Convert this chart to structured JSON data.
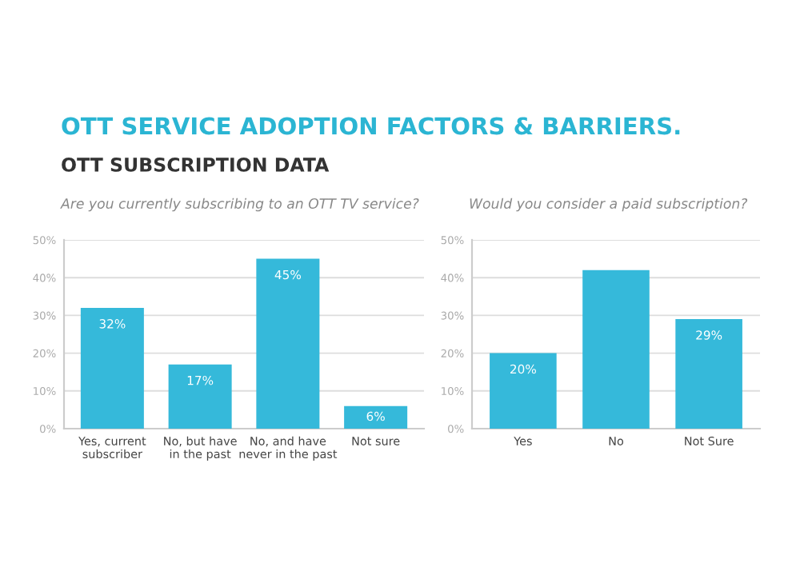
{
  "chart_data": [
    {
      "type": "bar",
      "title": "OTT SERVICE ADOPTION FACTORS & BARRIERS.",
      "subtitle": "OTT SUBSCRIPTION DATA",
      "annotations": [
        "Are you currently subscribing to an OTT TV service?"
      ],
      "categories": [
        "Yes, current\nsubscriber",
        "No, but have\nin the past",
        "No, and have\nnever in the past",
        "Not sure"
      ],
      "values": [
        32,
        17,
        45,
        6
      ],
      "value_labels": [
        "32%",
        "17%",
        "45%",
        "6%"
      ],
      "color": "#35b9da",
      "ylim": [
        0,
        50
      ],
      "yticks": [
        {
          "value": 0,
          "label": "0%"
        },
        {
          "value": 10,
          "label": "10%"
        },
        {
          "value": 20,
          "label": "20%"
        },
        {
          "value": 30,
          "label": "30%"
        },
        {
          "value": 40,
          "label": "40%"
        },
        {
          "value": 50,
          "label": "50%"
        }
      ],
      "grid": "y"
    },
    {
      "type": "bar",
      "annotations": [
        "Would you consider a paid subscription?"
      ],
      "categories": [
        "Yes",
        "No",
        "Not Sure"
      ],
      "values": [
        20,
        42,
        29
      ],
      "value_labels": [
        "20%",
        null,
        "29%"
      ],
      "color": "#35b9da",
      "ylim": [
        0,
        50
      ],
      "yticks": [
        {
          "value": 0,
          "label": "0%"
        },
        {
          "value": 10,
          "label": "10%"
        },
        {
          "value": 20,
          "label": "20%"
        },
        {
          "value": 30,
          "label": "30%"
        },
        {
          "value": 40,
          "label": "40%"
        },
        {
          "value": 50,
          "label": "50%"
        }
      ],
      "grid": "y"
    }
  ]
}
